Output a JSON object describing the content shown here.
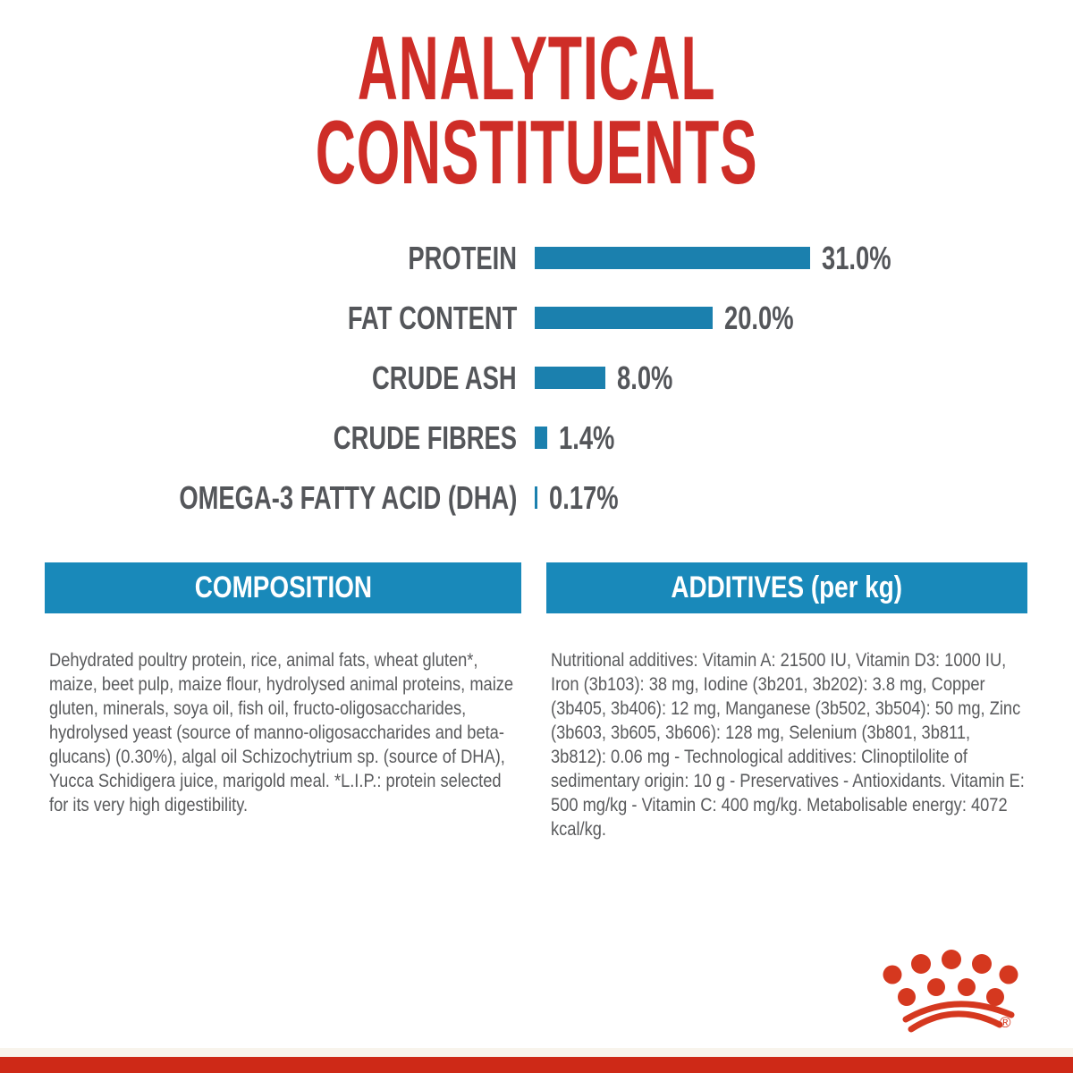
{
  "title": {
    "line1": "ANALYTICAL",
    "line2": "CONSTITUENTS"
  },
  "chart_data": {
    "type": "bar",
    "orientation": "horizontal",
    "title": "ANALYTICAL CONSTITUENTS",
    "categories": [
      "PROTEIN",
      "FAT CONTENT",
      "CRUDE ASH",
      "CRUDE FIBRES",
      "OMEGA-3 FATTY ACID (DHA)"
    ],
    "values": [
      31.0,
      20.0,
      8.0,
      1.4,
      0.17
    ],
    "value_labels": [
      "31.0%",
      "20.0%",
      "8.0%",
      "1.4%",
      "0.17%"
    ],
    "unit": "%",
    "xlim": [
      0,
      31
    ],
    "grid": false,
    "legend": false,
    "bar_color": "#1b80ae",
    "label_color": "#54565a"
  },
  "sections": {
    "composition": {
      "header": "COMPOSITION",
      "body": "Dehydrated poultry protein, rice, animal fats, wheat gluten*, maize, beet pulp, maize flour, hydrolysed animal proteins, maize gluten, minerals, soya oil, fish oil, fructo-oligosaccharides, hydrolysed yeast (source of manno-oligosaccharides and beta-glucans) (0.30%), algal oil Schizochytrium sp. (source of DHA), Yucca Schidigera juice, marigold meal. *L.I.P.: protein selected for its very high digestibility."
    },
    "additives": {
      "header": "ADDITIVES (per kg)",
      "body": "Nutritional additives: Vitamin A: 21500 IU, Vitamin D3: 1000 IU, Iron (3b103): 38 mg, Iodine (3b201, 3b202): 3.8 mg, Copper (3b405, 3b406): 12 mg, Manganese (3b502, 3b504): 50 mg, Zinc (3b603, 3b605, 3b606): 128 mg, Selenium (3b801, 3b811, 3b812): 0.06 mg - Technological additives: Clinoptilolite of sedimentary origin: 10 g - Preservatives - Antioxidants. Vitamin E: 500 mg/kg - Vitamin C: 400 mg/kg. Metabolisable energy: 4072 kcal/kg."
    }
  },
  "footer": {
    "logo": "royal-canin-crown",
    "registered_mark": "®"
  },
  "colors": {
    "title_red": "#ce2d27",
    "crown_red": "#d5381f",
    "bottom_bar_red": "#ce2917",
    "bar_blue": "#1b80ae",
    "banner_blue": "#1989ba",
    "text_gray": "#595a5c",
    "label_gray": "#54565a",
    "background": "#ffffff"
  }
}
